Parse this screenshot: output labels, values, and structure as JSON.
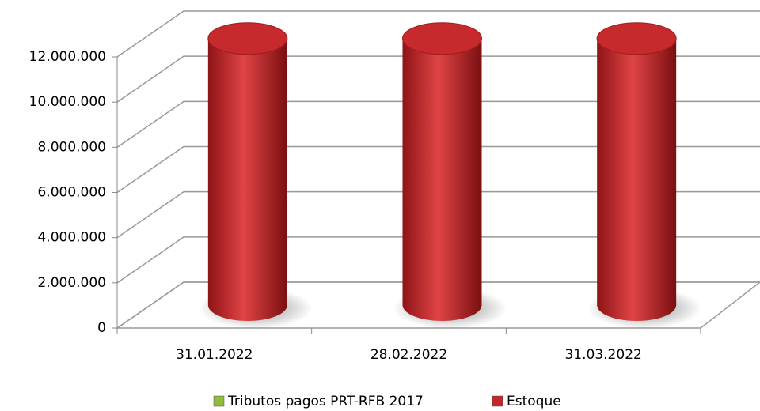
{
  "chart_data": {
    "type": "bar3d",
    "categories": [
      "31.01.2022",
      "28.02.2022",
      "31.03.2022"
    ],
    "series": [
      {
        "name": "Tributos pagos PRT-RFB 2017",
        "color": "#8fbc3a",
        "values": [
          0,
          0,
          0
        ]
      },
      {
        "name": "Estoque",
        "color": "#c0282a",
        "values": [
          11800000,
          11800000,
          11800000
        ]
      }
    ],
    "ylim": [
      0,
      12000000
    ],
    "yticks": [
      0,
      {
        "value": 2000000,
        "label": "2.000.000"
      },
      {
        "value": 4000000,
        "label": "4.000.000"
      },
      {
        "value": 6000000,
        "label": "6.000.000"
      },
      {
        "value": 8000000,
        "label": "8.000.000"
      },
      {
        "value": 10000000,
        "label": "10.000.000"
      },
      {
        "value": 12000000,
        "label": "12.000.000"
      }
    ],
    "grid": true,
    "legend": "bottom"
  }
}
